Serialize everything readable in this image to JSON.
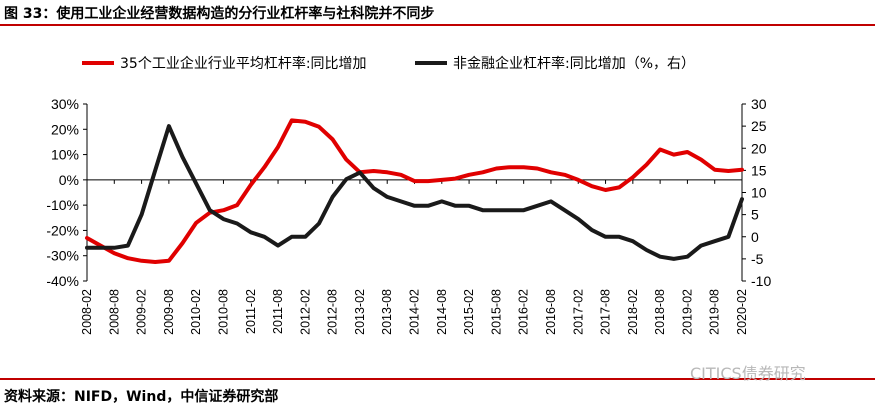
{
  "header": {
    "title": "图 33：使用工业企业经营数据构造的分行业杠杆率与社科院并不同步"
  },
  "footer": {
    "source": "资料来源：NIFD，Wind，中信证券研究部",
    "watermark": "CITICS债券研究"
  },
  "colors": {
    "series1": "#e00000",
    "series2": "#1a1a1a",
    "rule": "#c00000"
  },
  "chart_data": {
    "type": "line",
    "x_tick_labels": [
      "2008-02",
      "2008-08",
      "2009-02",
      "2009-08",
      "2010-02",
      "2010-08",
      "2011-02",
      "2011-08",
      "2012-02",
      "2012-08",
      "2013-02",
      "2013-08",
      "2014-02",
      "2014-08",
      "2015-02",
      "2015-08",
      "2016-02",
      "2016-08",
      "2017-02",
      "2017-08",
      "2018-02",
      "2018-08",
      "2019-02",
      "2019-08",
      "2020-02"
    ],
    "y_left": {
      "ticks": [
        "30%",
        "20%",
        "10%",
        "0%",
        "-10%",
        "-20%",
        "-30%",
        "-40%"
      ],
      "range": [
        -40,
        30
      ]
    },
    "y_right": {
      "ticks": [
        "30",
        "25",
        "20",
        "15",
        "10",
        "5",
        "0",
        "-5",
        "-10"
      ],
      "range": [
        -10,
        30
      ]
    },
    "legend_position": "top",
    "series": [
      {
        "name": "35个工业企业行业平均杠杆率:同比增加",
        "axis": "left",
        "x": [
          "2008-02",
          "2008-05",
          "2008-08",
          "2008-11",
          "2009-02",
          "2009-05",
          "2009-08",
          "2009-11",
          "2010-02",
          "2010-05",
          "2010-08",
          "2010-11",
          "2011-02",
          "2011-05",
          "2011-08",
          "2011-11",
          "2012-02",
          "2012-05",
          "2012-08",
          "2012-11",
          "2013-02",
          "2013-05",
          "2013-08",
          "2013-11",
          "2014-02",
          "2014-05",
          "2014-08",
          "2014-11",
          "2015-02",
          "2015-05",
          "2015-08",
          "2015-11",
          "2016-02",
          "2016-05",
          "2016-08",
          "2016-11",
          "2017-02",
          "2017-05",
          "2017-08",
          "2017-11",
          "2018-02",
          "2018-05",
          "2018-08",
          "2018-11",
          "2019-02",
          "2019-05",
          "2019-08",
          "2019-11",
          "2020-02"
        ],
        "y": [
          -23,
          -26,
          -29,
          -31,
          -32,
          -32.5,
          -32,
          -25,
          -17,
          -13,
          -12,
          -10,
          -2,
          5,
          13,
          23.5,
          23,
          21,
          16,
          8,
          3,
          3.5,
          3,
          2,
          -0.5,
          -0.5,
          0,
          0.5,
          2,
          3,
          4.5,
          5,
          5,
          4.5,
          3,
          2,
          0,
          -2.5,
          -4,
          -3,
          1,
          6,
          12,
          10,
          11,
          8,
          4,
          3.5,
          4
        ]
      },
      {
        "name": "非金融企业杠杆率:同比增加（%，右）",
        "axis": "right",
        "x": [
          "2008-02",
          "2008-05",
          "2008-08",
          "2008-11",
          "2009-02",
          "2009-05",
          "2009-08",
          "2009-11",
          "2010-02",
          "2010-05",
          "2010-08",
          "2010-11",
          "2011-02",
          "2011-05",
          "2011-08",
          "2011-11",
          "2012-02",
          "2012-05",
          "2012-08",
          "2012-11",
          "2013-02",
          "2013-05",
          "2013-08",
          "2013-11",
          "2014-02",
          "2014-05",
          "2014-08",
          "2014-11",
          "2015-02",
          "2015-05",
          "2015-08",
          "2015-11",
          "2016-02",
          "2016-05",
          "2016-08",
          "2016-11",
          "2017-02",
          "2017-05",
          "2017-08",
          "2017-11",
          "2018-02",
          "2018-05",
          "2018-08",
          "2018-11",
          "2019-02",
          "2019-05",
          "2019-08",
          "2019-11",
          "2020-02"
        ],
        "y": [
          -2.5,
          -2.5,
          -2.5,
          -2,
          5,
          15,
          25,
          18,
          12,
          6,
          4,
          3,
          1,
          0,
          -2,
          0,
          0,
          3,
          9,
          13,
          14.5,
          11,
          9,
          8,
          7,
          7,
          8,
          7,
          7,
          6,
          6,
          6,
          6,
          7,
          8,
          6,
          4,
          1.5,
          0,
          0,
          -1,
          -3,
          -4.5,
          -5,
          -4.5,
          -2,
          -1,
          0,
          8.5
        ]
      }
    ]
  }
}
